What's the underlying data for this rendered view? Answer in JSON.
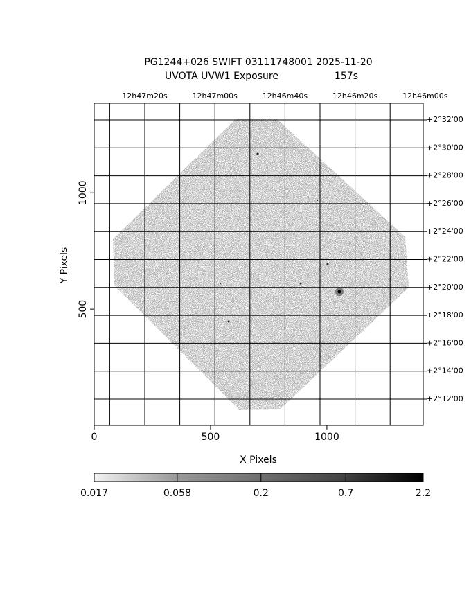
{
  "chart_data": {
    "type": "image",
    "title": "PG1244+026 SWIFT 03111748001 2025-11-20",
    "subtitle": "UVOTA UVW1 Exposure",
    "exposure": "157s",
    "x_label": "X Pixels",
    "y_label": "Y Pixels",
    "xlim": [
      0,
      1414
    ],
    "ylim": [
      0,
      1385
    ],
    "xticks": [
      0,
      500,
      1000
    ],
    "yticks": [
      500,
      1000
    ],
    "ra_labels": [
      "12h47m20s",
      "12h47m00s",
      "12h46m40s",
      "12h46m20s",
      "12h46m00s"
    ],
    "dec_labels": [
      "+2°32'00",
      "+2°30'00",
      "+2°28'00",
      "+2°26'00",
      "+2°24'00",
      "+2°22'00",
      "+2°20'00",
      "+2°18'00",
      "+2°16'00",
      "+2°14'00",
      "+2°12'00"
    ],
    "colorbar": {
      "log": true,
      "lim": [
        0.017,
        2.2
      ],
      "ticks": [
        0.017,
        0.058,
        0.2,
        0.7,
        2.2
      ]
    }
  }
}
